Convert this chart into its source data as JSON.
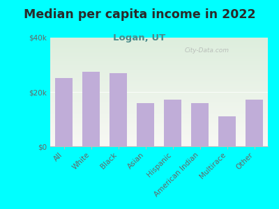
{
  "title": "Median per capita income in 2022",
  "subtitle": "Logan, UT",
  "categories": [
    "All",
    "White",
    "Black",
    "Asian",
    "Hispanic",
    "American Indian",
    "Multirace",
    "Other"
  ],
  "values": [
    25000,
    27500,
    26800,
    16000,
    17200,
    16000,
    11000,
    17200
  ],
  "bar_color": "#c0add8",
  "background_outer": "#00ffff",
  "background_inner_top": "#ddeedd",
  "background_inner_bottom": "#f8f8f4",
  "title_color": "#2a2a2a",
  "subtitle_color": "#4a8a8a",
  "tick_color": "#666666",
  "watermark": "City-Data.com",
  "ylim": [
    0,
    40000
  ],
  "yticks": [
    0,
    20000,
    40000
  ],
  "ytick_labels": [
    "$0",
    "$20k",
    "$40k"
  ],
  "title_fontsize": 12.5,
  "subtitle_fontsize": 9.5,
  "tick_fontsize": 7.5
}
